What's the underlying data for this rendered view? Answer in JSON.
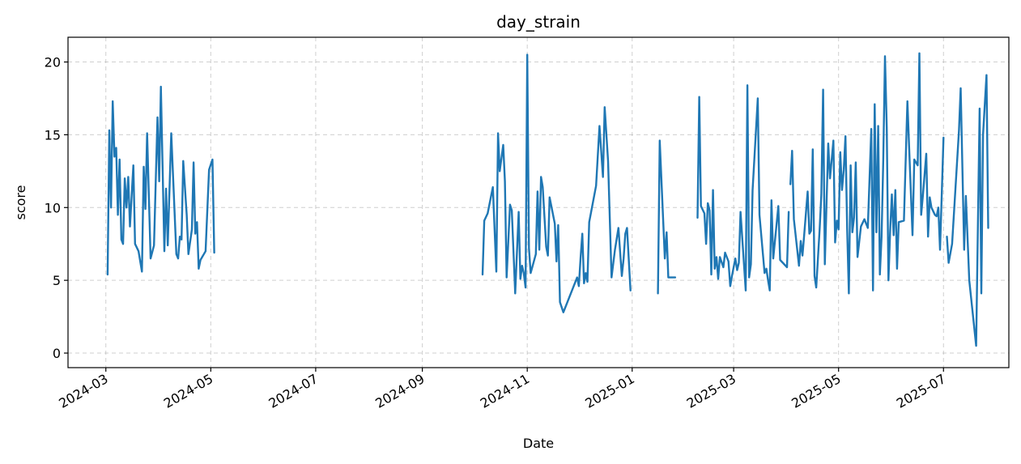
{
  "chart_data": {
    "type": "line",
    "title": "day_strain",
    "xlabel": "Date",
    "ylabel": "score",
    "x_tick_labels": [
      "2024-03",
      "2024-05",
      "2024-07",
      "2024-09",
      "2024-11",
      "2025-01",
      "2025-03",
      "2025-05",
      "2025-07"
    ],
    "y_ticks": [
      0,
      5,
      10,
      15,
      20
    ],
    "ylim": [
      -1,
      21.7
    ],
    "xlim": [
      "2024-02-08",
      "2025-08-08"
    ],
    "grid": true,
    "color": "#1f77b4",
    "series": [
      {
        "segments": [
          [
            [
              "2024-03-02",
              5.4
            ],
            [
              "2024-03-03",
              15.3
            ],
            [
              "2024-03-04",
              10
            ],
            [
              "2024-03-05",
              17.3
            ],
            [
              "2024-03-06",
              13.5
            ],
            [
              "2024-03-07",
              14.1
            ],
            [
              "2024-03-08",
              9.5
            ],
            [
              "2024-03-09",
              13.3
            ],
            [
              "2024-03-10",
              7.8
            ],
            [
              "2024-03-11",
              7.5
            ],
            [
              "2024-03-12",
              12
            ],
            [
              "2024-03-13",
              10
            ],
            [
              "2024-03-14",
              12.1
            ],
            [
              "2024-03-15",
              8.7
            ],
            [
              "2024-03-17",
              12.9
            ],
            [
              "2024-03-18",
              7.5
            ],
            [
              "2024-03-20",
              7
            ],
            [
              "2024-03-22",
              5.6
            ],
            [
              "2024-03-23",
              12.8
            ],
            [
              "2024-03-24",
              9.9
            ],
            [
              "2024-03-25",
              15.1
            ],
            [
              "2024-03-27",
              6.5
            ],
            [
              "2024-03-29",
              7.4
            ],
            [
              "2024-03-31",
              16.2
            ],
            [
              "2024-04-01",
              11.8
            ],
            [
              "2024-04-02",
              18.3
            ],
            [
              "2024-04-04",
              7
            ],
            [
              "2024-04-05",
              11.3
            ],
            [
              "2024-04-06",
              7.4
            ],
            [
              "2024-04-08",
              15.1
            ],
            [
              "2024-04-11",
              6.8
            ],
            [
              "2024-04-12",
              6.5
            ],
            [
              "2024-04-13",
              8
            ],
            [
              "2024-04-14",
              7.8
            ],
            [
              "2024-04-15",
              13.2
            ],
            [
              "2024-04-17",
              9.5
            ],
            [
              "2024-04-18",
              6.8
            ],
            [
              "2024-04-20",
              8.5
            ],
            [
              "2024-04-21",
              13.1
            ],
            [
              "2024-04-22",
              8.2
            ],
            [
              "2024-04-23",
              9
            ],
            [
              "2024-04-24",
              5.8
            ],
            [
              "2024-04-25",
              6.4
            ],
            [
              "2024-04-27",
              6.8
            ],
            [
              "2024-04-28",
              7
            ],
            [
              "2024-04-30",
              12.6
            ],
            [
              "2024-05-02",
              13.3
            ],
            [
              "2024-05-03",
              6.9
            ]
          ],
          [
            [
              "2024-10-06",
              5.4
            ],
            [
              "2024-10-07",
              9.1
            ],
            [
              "2024-10-09",
              9.6
            ],
            [
              "2024-10-12",
              11.4
            ],
            [
              "2024-10-14",
              5.6
            ],
            [
              "2024-10-15",
              15.1
            ],
            [
              "2024-10-16",
              12.5
            ],
            [
              "2024-10-18",
              14.3
            ],
            [
              "2024-10-19",
              11.8
            ],
            [
              "2024-10-20",
              5.2
            ],
            [
              "2024-10-22",
              10.2
            ],
            [
              "2024-10-23",
              9.8
            ],
            [
              "2024-10-25",
              4.1
            ],
            [
              "2024-10-27",
              9.7
            ],
            [
              "2024-10-28",
              5.1
            ],
            [
              "2024-10-29",
              6
            ],
            [
              "2024-10-30",
              5.5
            ],
            [
              "2024-10-31",
              4.5
            ],
            [
              "2024-11-01",
              20.5
            ],
            [
              "2024-11-02",
              7.2
            ],
            [
              "2024-11-03",
              5.5
            ],
            [
              "2024-11-06",
              6.8
            ],
            [
              "2024-11-07",
              11.1
            ],
            [
              "2024-11-08",
              7.1
            ],
            [
              "2024-11-09",
              12.1
            ],
            [
              "2024-11-10",
              11.4
            ],
            [
              "2024-11-12",
              7.3
            ],
            [
              "2024-11-13",
              6.7
            ],
            [
              "2024-11-14",
              10.7
            ],
            [
              "2024-11-17",
              8.9
            ],
            [
              "2024-11-18",
              6.3
            ],
            [
              "2024-11-19",
              8.8
            ],
            [
              "2024-11-20",
              3.5
            ],
            [
              "2024-11-22",
              2.8
            ],
            [
              "2024-11-30",
              5.2
            ],
            [
              "2024-12-01",
              4.6
            ],
            [
              "2024-12-02",
              6.5
            ],
            [
              "2024-12-03",
              8.2
            ],
            [
              "2024-12-04",
              4.8
            ],
            [
              "2024-12-05",
              5.5
            ],
            [
              "2024-12-06",
              4.9
            ],
            [
              "2024-12-07",
              9
            ],
            [
              "2024-12-11",
              11.5
            ],
            [
              "2024-12-13",
              15.6
            ],
            [
              "2024-12-15",
              12.1
            ],
            [
              "2024-12-16",
              16.9
            ],
            [
              "2024-12-18",
              13.2
            ],
            [
              "2024-12-20",
              5.2
            ],
            [
              "2024-12-22",
              7.1
            ],
            [
              "2024-12-24",
              8.6
            ],
            [
              "2024-12-26",
              5.3
            ],
            [
              "2024-12-27",
              6.5
            ],
            [
              "2024-12-28",
              8.2
            ],
            [
              "2024-12-29",
              8.6
            ],
            [
              "2024-12-31",
              4.3
            ]
          ],
          [
            [
              "2025-01-16",
              4.1
            ],
            [
              "2025-01-17",
              14.6
            ],
            [
              "2025-01-20",
              6.5
            ],
            [
              "2025-01-21",
              8.3
            ],
            [
              "2025-01-22",
              5.2
            ],
            [
              "2025-01-26",
              5.2
            ]
          ],
          [
            [
              "2025-02-08",
              9.3
            ],
            [
              "2025-02-09",
              17.6
            ],
            [
              "2025-02-10",
              10.1
            ],
            [
              "2025-02-12",
              9.6
            ],
            [
              "2025-02-13",
              7.5
            ],
            [
              "2025-02-14",
              10.3
            ],
            [
              "2025-02-15",
              9.8
            ],
            [
              "2025-02-16",
              5.4
            ],
            [
              "2025-02-17",
              11.2
            ],
            [
              "2025-02-18",
              5.8
            ],
            [
              "2025-02-19",
              6.6
            ],
            [
              "2025-02-20",
              5.1
            ],
            [
              "2025-02-21",
              6.6
            ],
            [
              "2025-02-23",
              5.9
            ],
            [
              "2025-02-24",
              6.9
            ],
            [
              "2025-02-26",
              6.3
            ],
            [
              "2025-02-27",
              4.6
            ],
            [
              "2025-02-28",
              5.3
            ],
            [
              "2025-03-02",
              6.5
            ],
            [
              "2025-03-03",
              5.7
            ],
            [
              "2025-03-04",
              6.2
            ],
            [
              "2025-03-05",
              9.7
            ],
            [
              "2025-03-08",
              4.3
            ],
            [
              "2025-03-09",
              18.4
            ],
            [
              "2025-03-10",
              5.2
            ],
            [
              "2025-03-11",
              6.1
            ],
            [
              "2025-03-12",
              11.2
            ],
            [
              "2025-03-15",
              17.5
            ],
            [
              "2025-03-16",
              9.5
            ],
            [
              "2025-03-19",
              5.5
            ],
            [
              "2025-03-20",
              5.8
            ],
            [
              "2025-03-21",
              5
            ],
            [
              "2025-03-22",
              4.3
            ],
            [
              "2025-03-23",
              10.5
            ],
            [
              "2025-03-24",
              6.5
            ],
            [
              "2025-03-27",
              10.1
            ],
            [
              "2025-03-28",
              6.4
            ],
            [
              "2025-04-01",
              5.9
            ],
            [
              "2025-04-02",
              9.7
            ]
          ],
          [
            [
              "2025-04-03",
              11.6
            ],
            [
              "2025-04-04",
              13.9
            ],
            [
              "2025-04-05",
              9.2
            ],
            [
              "2025-04-08",
              6
            ],
            [
              "2025-04-09",
              7.7
            ],
            [
              "2025-04-10",
              6.7
            ],
            [
              "2025-04-11",
              8.1
            ],
            [
              "2025-04-13",
              11.1
            ],
            [
              "2025-04-14",
              8.2
            ],
            [
              "2025-04-15",
              8.4
            ],
            [
              "2025-04-16",
              14
            ],
            [
              "2025-04-17",
              5.3
            ],
            [
              "2025-04-18",
              4.5
            ],
            [
              "2025-04-20",
              8.5
            ],
            [
              "2025-04-21",
              10.9
            ],
            [
              "2025-04-22",
              18.1
            ],
            [
              "2025-04-23",
              6.1
            ],
            [
              "2025-04-25",
              14.4
            ],
            [
              "2025-04-26",
              12
            ],
            [
              "2025-04-27",
              13.3
            ],
            [
              "2025-04-28",
              14.6
            ],
            [
              "2025-04-29",
              7.6
            ],
            [
              "2025-04-30",
              9.1
            ],
            [
              "2025-05-01",
              8.5
            ],
            [
              "2025-05-02",
              13.8
            ],
            [
              "2025-05-03",
              11.2
            ],
            [
              "2025-05-04",
              12.6
            ],
            [
              "2025-05-05",
              14.9
            ],
            [
              "2025-05-06",
              8.5
            ],
            [
              "2025-05-07",
              4.1
            ],
            [
              "2025-05-08",
              12.9
            ],
            [
              "2025-05-09",
              8.3
            ],
            [
              "2025-05-10",
              9.3
            ],
            [
              "2025-05-11",
              13.1
            ],
            [
              "2025-05-12",
              6.6
            ],
            [
              "2025-05-14",
              8.7
            ],
            [
              "2025-05-16",
              9.2
            ],
            [
              "2025-05-18",
              8.6
            ],
            [
              "2025-05-20",
              15.4
            ],
            [
              "2025-05-21",
              4.3
            ],
            [
              "2025-05-22",
              17.1
            ],
            [
              "2025-05-23",
              8.3
            ],
            [
              "2025-05-24",
              15.6
            ],
            [
              "2025-05-25",
              5.4
            ],
            [
              "2025-05-26",
              8
            ],
            [
              "2025-05-27",
              13.3
            ],
            [
              "2025-05-28",
              20.4
            ],
            [
              "2025-05-29",
              15.5
            ],
            [
              "2025-05-30",
              5
            ],
            [
              "2025-05-31",
              8.4
            ],
            [
              "2025-06-01",
              10.9
            ],
            [
              "2025-06-02",
              8.1
            ],
            [
              "2025-06-03",
              11.2
            ],
            [
              "2025-06-04",
              5.8
            ],
            [
              "2025-06-05",
              9
            ],
            [
              "2025-06-08",
              9.1
            ],
            [
              "2025-06-10",
              17.3
            ],
            [
              "2025-06-11",
              14.2
            ],
            [
              "2025-06-13",
              8.1
            ],
            [
              "2025-06-14",
              13.3
            ],
            [
              "2025-06-16",
              12.9
            ],
            [
              "2025-06-17",
              20.6
            ],
            [
              "2025-06-18",
              9.5
            ],
            [
              "2025-06-19",
              10.8
            ],
            [
              "2025-06-21",
              13.7
            ],
            [
              "2025-06-22",
              8
            ],
            [
              "2025-06-23",
              10.7
            ],
            [
              "2025-06-24",
              10
            ],
            [
              "2025-06-26",
              9.5
            ],
            [
              "2025-06-27",
              9.4
            ],
            [
              "2025-06-28",
              10
            ],
            [
              "2025-06-29",
              7.1
            ],
            [
              "2025-07-01",
              14.8
            ]
          ],
          [
            [
              "2025-07-03",
              8
            ],
            [
              "2025-07-04",
              6.2
            ],
            [
              "2025-07-06",
              7.5
            ],
            [
              "2025-07-10",
              15.3
            ],
            [
              "2025-07-11",
              18.2
            ],
            [
              "2025-07-13",
              7.1
            ],
            [
              "2025-07-14",
              10.8
            ],
            [
              "2025-07-16",
              5
            ],
            [
              "2025-07-20",
              0.5
            ],
            [
              "2025-07-22",
              16.8
            ],
            [
              "2025-07-23",
              4.1
            ],
            [
              "2025-07-24",
              15
            ],
            [
              "2025-07-26",
              19.1
            ],
            [
              "2025-07-27",
              8.6
            ]
          ]
        ]
      }
    ]
  }
}
